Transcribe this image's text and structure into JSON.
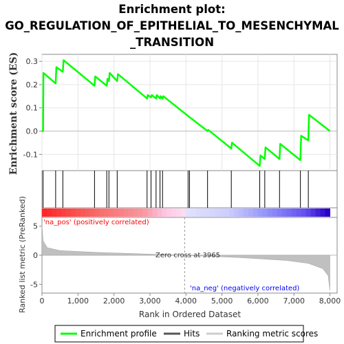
{
  "chart_data": {
    "type": "line",
    "title_lines": [
      "Enrichment plot:",
      "GO_REGULATION_OF_EPITHELIAL_TO_MESENCHYMAL",
      "_TRANSITION"
    ],
    "ylabel": "Enrichment score (ES)",
    "xlabel": "Rank in Ordered Dataset",
    "ylabel_lower": "Ranked list metric (PreRanked)",
    "xlim": [
      0,
      8200
    ],
    "ylim": [
      -0.17,
      0.33
    ],
    "lower_ylim": [
      -6.5,
      6.5
    ],
    "x_ticks": [
      0,
      1000,
      2000,
      3000,
      4000,
      5000,
      6000,
      7000,
      8000
    ],
    "x_tick_labels": [
      "0",
      "1,000",
      "2,000",
      "3,000",
      "4,000",
      "5,000",
      "6,000",
      "7,000",
      "8,000"
    ],
    "y_ticks": [
      -0.1,
      0.0,
      0.1,
      0.2,
      0.3
    ],
    "y_tick_labels": [
      "-0.1",
      "0.0",
      "0.1",
      "0.2",
      "0.3"
    ],
    "lower_y_ticks": [
      -5,
      0,
      5
    ],
    "lower_y_tick_labels": [
      "-5",
      "0",
      "5"
    ],
    "grid": true,
    "series": [
      {
        "name": "Enrichment profile",
        "color": "#00ff00",
        "points": [
          [
            0,
            0.0
          ],
          [
            30,
            0.0
          ],
          [
            40,
            0.25
          ],
          [
            380,
            0.205
          ],
          [
            400,
            0.275
          ],
          [
            580,
            0.255
          ],
          [
            600,
            0.305
          ],
          [
            1460,
            0.195
          ],
          [
            1480,
            0.235
          ],
          [
            1800,
            0.195
          ],
          [
            1820,
            0.225
          ],
          [
            1860,
            0.215
          ],
          [
            1880,
            0.25
          ],
          [
            2090,
            0.215
          ],
          [
            2110,
            0.245
          ],
          [
            2920,
            0.14
          ],
          [
            2940,
            0.155
          ],
          [
            3030,
            0.145
          ],
          [
            3050,
            0.155
          ],
          [
            3170,
            0.14
          ],
          [
            3190,
            0.155
          ],
          [
            3280,
            0.14
          ],
          [
            3300,
            0.15
          ],
          [
            3350,
            0.14
          ],
          [
            3370,
            0.15
          ],
          [
            4060,
            0.065
          ],
          [
            4100,
            0.06
          ],
          [
            4600,
            0.0
          ],
          [
            4620,
            0.005
          ],
          [
            5260,
            -0.075
          ],
          [
            5280,
            -0.05
          ],
          [
            6050,
            -0.15
          ],
          [
            6070,
            -0.105
          ],
          [
            6190,
            -0.12
          ],
          [
            6210,
            -0.07
          ],
          [
            6600,
            -0.12
          ],
          [
            6620,
            -0.055
          ],
          [
            7180,
            -0.125
          ],
          [
            7200,
            -0.02
          ],
          [
            7400,
            -0.04
          ],
          [
            7420,
            0.07
          ],
          [
            8000,
            0.0
          ]
        ]
      }
    ],
    "hits": [
      30,
      380,
      580,
      1460,
      1800,
      1860,
      2090,
      2920,
      3030,
      3170,
      3280,
      3350,
      4060,
      4100,
      4600,
      5260,
      6050,
      6190,
      6600,
      7180,
      7400
    ],
    "zero_cross_label": "Zero cross at 3965",
    "zero_cross_x": 3965,
    "pos_label": "'na_pos' (positively correlated)",
    "neg_label": "'na_neg' (negatively correlated)",
    "legend": [
      {
        "label": "Enrichment profile",
        "color": "#00ff00"
      },
      {
        "label": "Hits",
        "color": "#555555"
      },
      {
        "label": "Ranking metric scores",
        "color": "#cccccc"
      }
    ],
    "legend_position": "bottom"
  }
}
